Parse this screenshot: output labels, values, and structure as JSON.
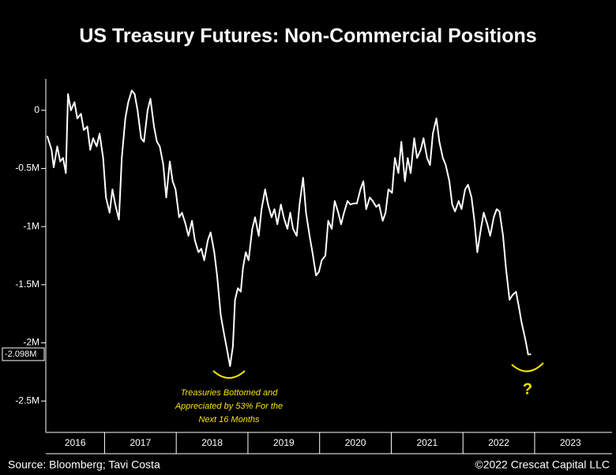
{
  "chart_data": {
    "type": "line",
    "title": "US Treasury Futures: Non-Commercial Positions",
    "color": "#ffffff",
    "x": [
      2016.2,
      2016.26,
      2016.29,
      2016.34,
      2016.38,
      2016.42,
      2016.46,
      2016.49,
      2016.53,
      2016.58,
      2016.62,
      2016.67,
      2016.71,
      2016.76,
      2016.8,
      2016.84,
      2016.89,
      2016.93,
      2016.98,
      2017.02,
      2017.07,
      2017.11,
      2017.15,
      2017.2,
      2017.24,
      2017.29,
      2017.33,
      2017.38,
      2017.42,
      2017.46,
      2017.51,
      2017.55,
      2017.6,
      2017.64,
      2017.69,
      2017.73,
      2017.77,
      2017.82,
      2017.86,
      2017.91,
      2017.95,
      2017.99,
      2018.04,
      2018.08,
      2018.13,
      2018.17,
      2018.22,
      2018.26,
      2018.31,
      2018.35,
      2018.39,
      2018.44,
      2018.48,
      2018.53,
      2018.57,
      2018.62,
      2018.66,
      2018.7,
      2018.75,
      2018.79,
      2018.82,
      2018.86,
      2018.9,
      2018.93,
      2018.97,
      2019.01,
      2019.06,
      2019.1,
      2019.15,
      2019.19,
      2019.24,
      2019.28,
      2019.33,
      2019.37,
      2019.41,
      2019.46,
      2019.5,
      2019.55,
      2019.59,
      2019.63,
      2019.68,
      2019.72,
      2019.77,
      2019.81,
      2019.86,
      2019.9,
      2019.95,
      2019.99,
      2020.03,
      2020.08,
      2020.12,
      2020.17,
      2020.21,
      2020.26,
      2020.3,
      2020.34,
      2020.39,
      2020.43,
      2020.48,
      2020.52,
      2020.57,
      2020.61,
      2020.65,
      2020.7,
      2020.74,
      2020.79,
      2020.83,
      2020.88,
      2020.92,
      2020.96,
      2021.01,
      2021.05,
      2021.1,
      2021.14,
      2021.19,
      2021.23,
      2021.27,
      2021.32,
      2021.36,
      2021.41,
      2021.45,
      2021.5,
      2021.54,
      2021.58,
      2021.63,
      2021.67,
      2021.72,
      2021.76,
      2021.81,
      2021.85,
      2021.89,
      2021.94,
      2021.98,
      2022.03,
      2022.07,
      2022.12,
      2022.16,
      2022.2,
      2022.25,
      2022.29,
      2022.34,
      2022.38,
      2022.43,
      2022.47,
      2022.51,
      2022.56,
      2022.6,
      2022.65,
      2022.69,
      2022.74,
      2022.78,
      2022.82,
      2022.87,
      2022.91,
      2022.95
    ],
    "values": [
      -220000,
      -340000,
      -490000,
      -310000,
      -440000,
      -410000,
      -540000,
      140000,
      0,
      70000,
      -70000,
      -30000,
      -170000,
      -140000,
      -340000,
      -240000,
      -310000,
      -200000,
      -410000,
      -750000,
      -880000,
      -680000,
      -810000,
      -940000,
      -410000,
      -70000,
      70000,
      170000,
      140000,
      0,
      -240000,
      -270000,
      0,
      100000,
      -140000,
      -270000,
      -310000,
      -470000,
      -750000,
      -440000,
      -610000,
      -680000,
      -920000,
      -880000,
      -980000,
      -1080000,
      -950000,
      -1120000,
      -1220000,
      -1190000,
      -1290000,
      -1120000,
      -1050000,
      -1220000,
      -1420000,
      -1760000,
      -1900000,
      -2030000,
      -2200000,
      -2030000,
      -1630000,
      -1530000,
      -1560000,
      -1360000,
      -1220000,
      -1290000,
      -1020000,
      -920000,
      -1080000,
      -850000,
      -680000,
      -810000,
      -920000,
      -850000,
      -980000,
      -810000,
      -920000,
      -1020000,
      -880000,
      -1020000,
      -1080000,
      -810000,
      -580000,
      -880000,
      -1080000,
      -1220000,
      -1420000,
      -1390000,
      -1290000,
      -1250000,
      -950000,
      -1020000,
      -780000,
      -880000,
      -980000,
      -880000,
      -780000,
      -810000,
      -800000,
      -800000,
      -680000,
      -610000,
      -850000,
      -750000,
      -780000,
      -830000,
      -810000,
      -950000,
      -880000,
      -680000,
      -710000,
      -410000,
      -540000,
      -270000,
      -610000,
      -410000,
      -540000,
      -240000,
      -410000,
      -340000,
      -240000,
      -410000,
      -470000,
      -200000,
      -70000,
      -270000,
      -410000,
      -470000,
      -610000,
      -810000,
      -870000,
      -780000,
      -850000,
      -680000,
      -640000,
      -750000,
      -950000,
      -1220000,
      -1020000,
      -880000,
      -980000,
      -1080000,
      -920000,
      -850000,
      -870000,
      -1080000,
      -1360000,
      -1630000,
      -1590000,
      -1560000,
      -1690000,
      -1830000,
      -1970000,
      -2100000,
      -2098000
    ],
    "xlim": [
      2016.18,
      2024.08
    ],
    "xticks": [
      {
        "value": 2016,
        "label": "2016"
      },
      {
        "value": 2017,
        "label": "2017"
      },
      {
        "value": 2018,
        "label": "2018"
      },
      {
        "value": 2019,
        "label": "2019"
      },
      {
        "value": 2020,
        "label": "2020"
      },
      {
        "value": 2021,
        "label": "2021"
      },
      {
        "value": 2022,
        "label": "2022"
      },
      {
        "value": 2023,
        "label": "2023"
      }
    ],
    "ylim": [
      -2770000,
      270000
    ],
    "yticks": [
      0,
      {
        "value": -500000,
        "label": "-0.5M"
      },
      {
        "value": -1000000,
        "label": "-1M"
      },
      {
        "value": -1500000,
        "label": "-1.5M"
      },
      {
        "value": -2000000,
        "label": "-2M"
      },
      {
        "value": -2500000,
        "label": "-2.5M"
      }
    ],
    "last_value": {
      "value": -2098000,
      "label": "-2.098M"
    },
    "annotation_lines": [
      "Treasuries Bottomed and",
      "Appreciated by 53% For the",
      "Next 16 Months"
    ],
    "question_mark": "?",
    "source": "Source: Bloomberg; Tavi Costa",
    "credit": "©2022 Crescat Capital LLC"
  }
}
